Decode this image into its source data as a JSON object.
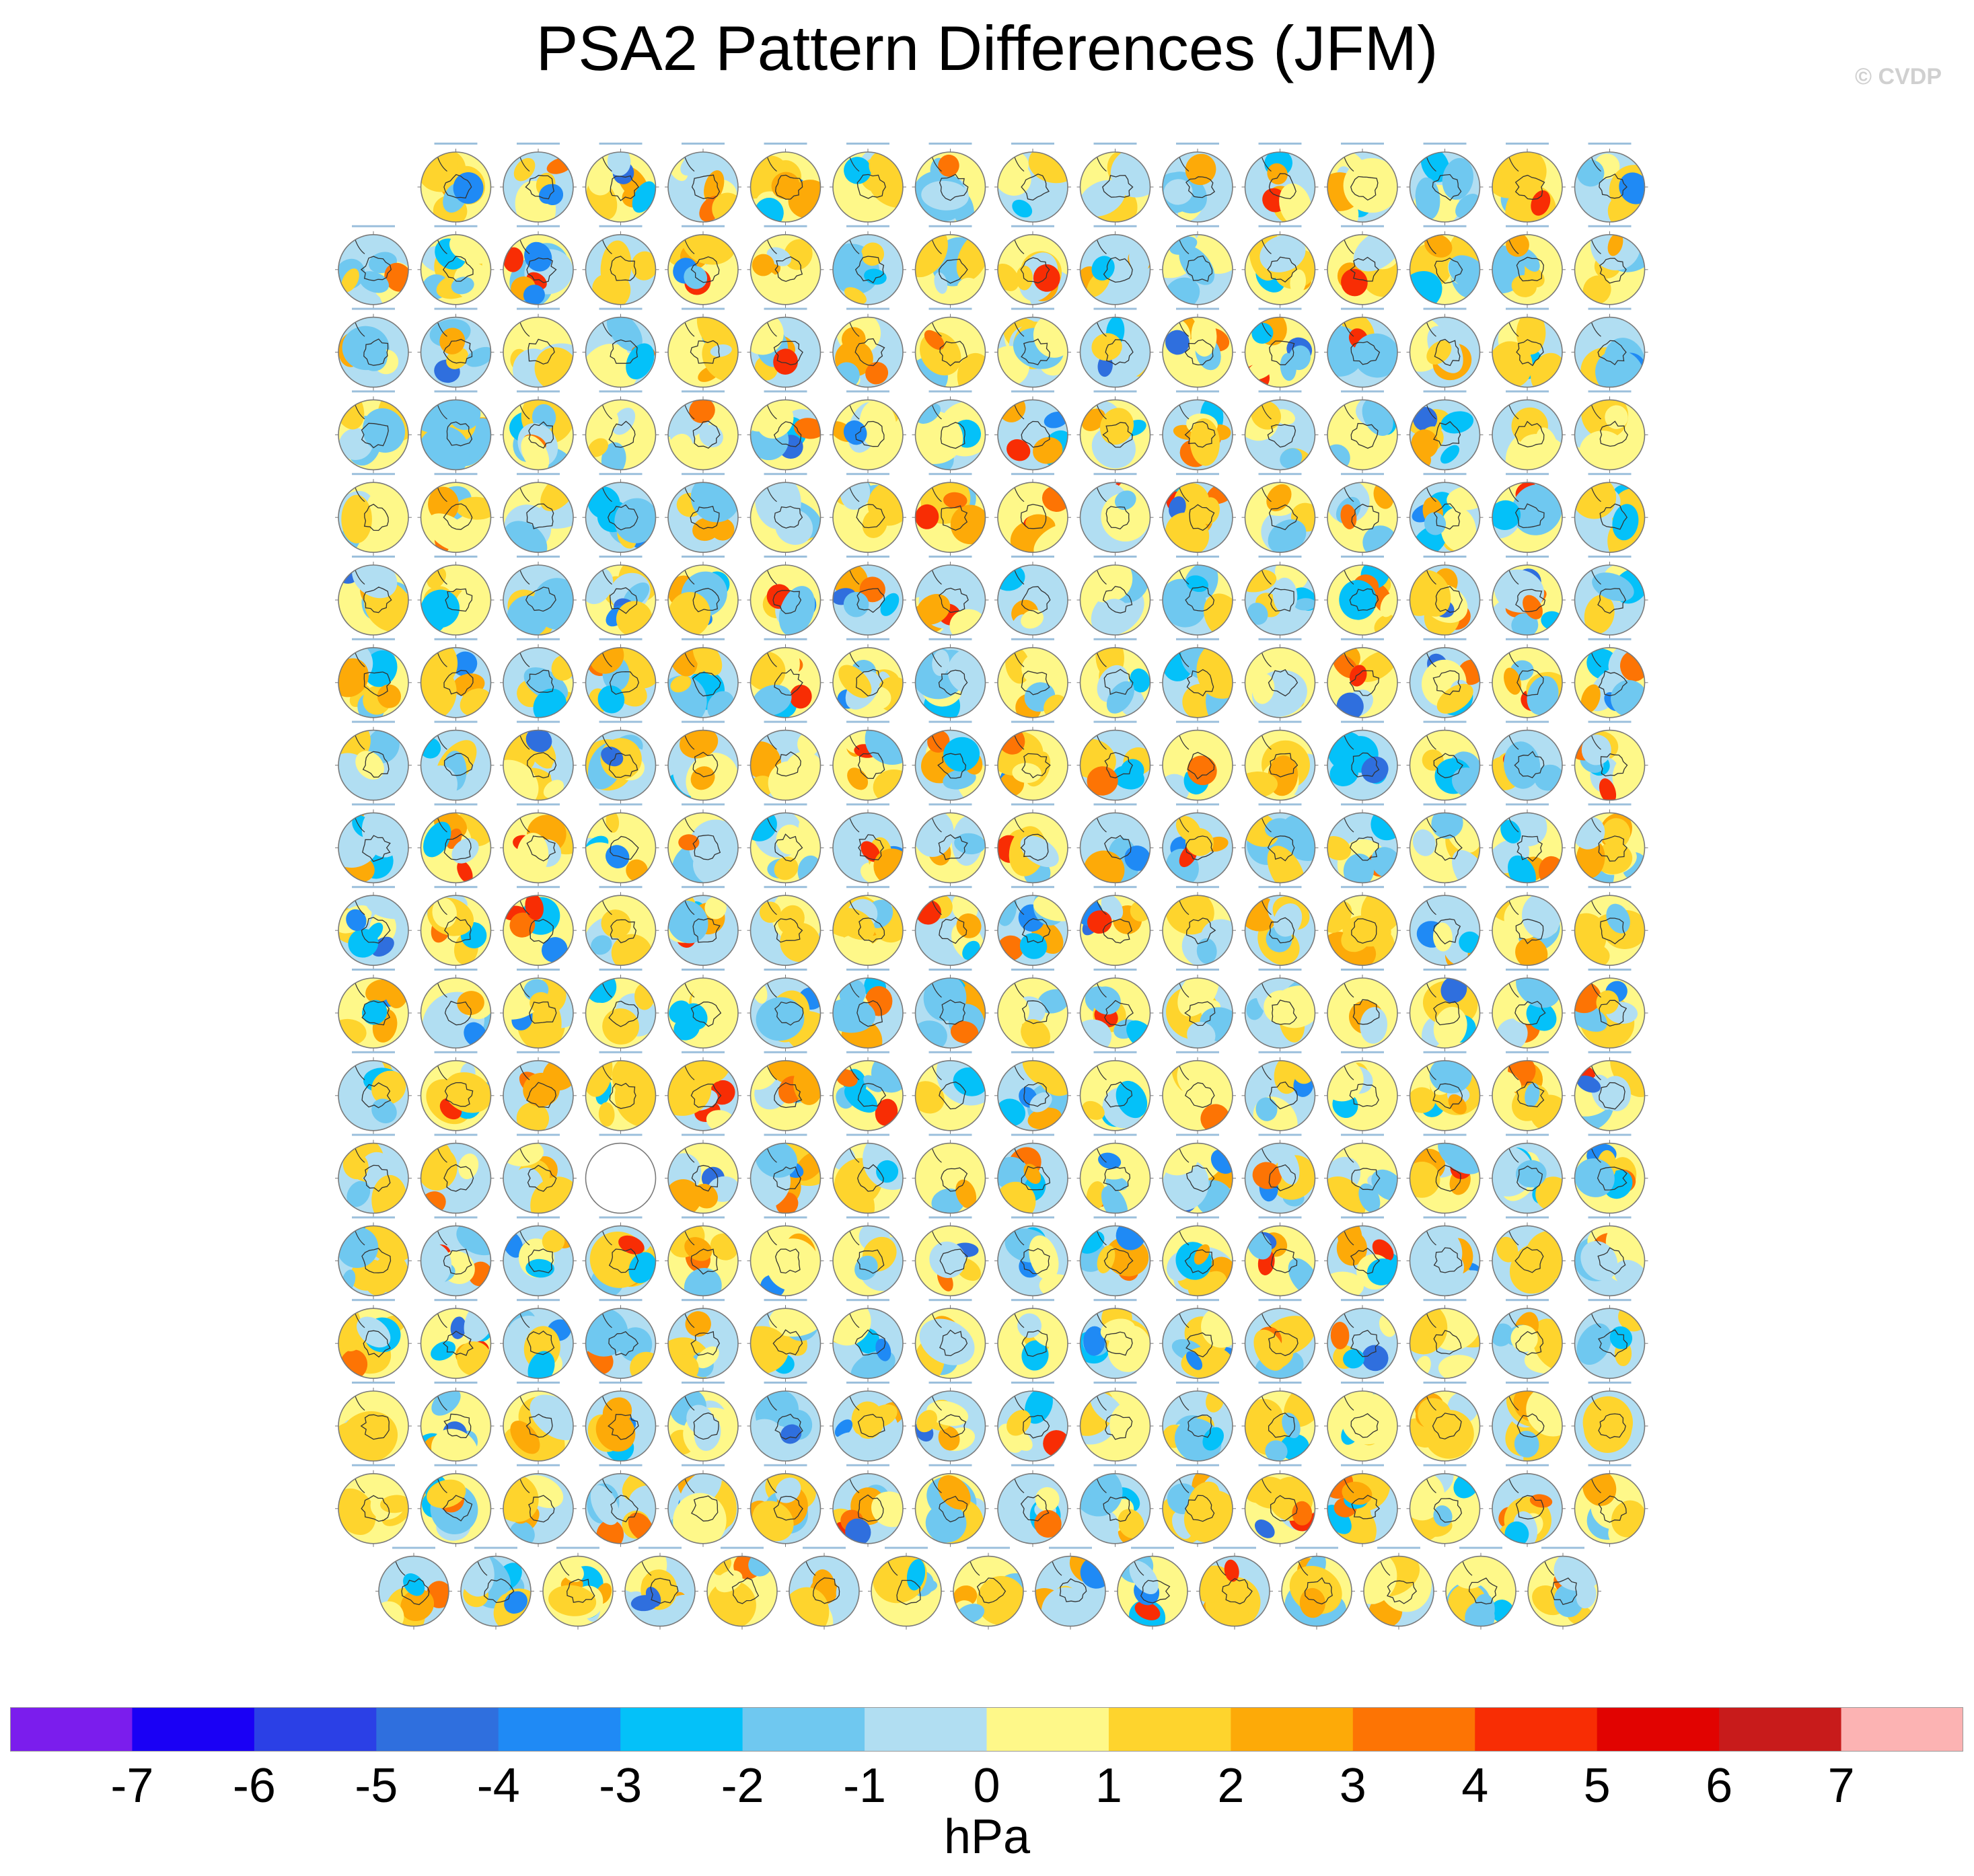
{
  "title": "PSA2 Pattern Differences (JFM)",
  "credit": "© CVDP",
  "panel_grid": {
    "rows": [
      15,
      16,
      16,
      16,
      16,
      16,
      16,
      16,
      16,
      16,
      16,
      16,
      16,
      16,
      16,
      16,
      16,
      15
    ],
    "missing_panel": {
      "row": 12,
      "col": 3
    }
  },
  "colorbar": {
    "units": "hPa",
    "ticks": [
      "-7",
      "-6",
      "-5",
      "-4",
      "-3",
      "-2",
      "-1",
      "0",
      "1",
      "2",
      "3",
      "4",
      "5",
      "6",
      "7"
    ],
    "colors": [
      "#7b1ded",
      "#1a00f5",
      "#2b40e6",
      "#2f6fde",
      "#1f8af5",
      "#04c1f9",
      "#6fc8f0",
      "#b1def2",
      "#fef889",
      "#fed42d",
      "#fdaa08",
      "#fd7404",
      "#f82d04",
      "#e10301",
      "#c81b1b",
      "#fcb3b3"
    ]
  },
  "palette": {
    "land_line": "#333333",
    "circle_edge": "#7a7a7a",
    "label_color": "#4a8cc0"
  }
}
